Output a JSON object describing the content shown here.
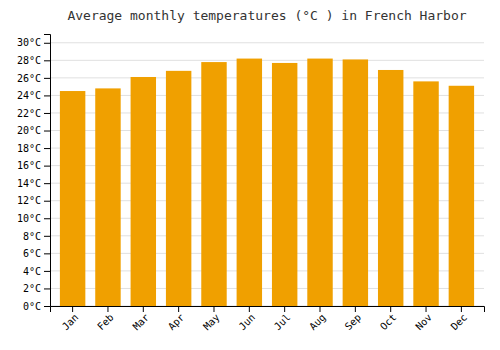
{
  "chart_data": {
    "type": "bar",
    "title": "Average monthly temperatures (°C ) in French Harbor",
    "categories": [
      "Jan",
      "Feb",
      "Mar",
      "Apr",
      "May",
      "Jun",
      "Jul",
      "Aug",
      "Sep",
      "Oct",
      "Nov",
      "Dec"
    ],
    "values": [
      24.5,
      24.8,
      26.1,
      26.8,
      27.8,
      28.2,
      27.7,
      28.2,
      28.1,
      26.9,
      25.6,
      25.1
    ],
    "color": "#F0A000",
    "ylim": [
      0,
      31
    ],
    "yticks": [
      {
        "value": 0,
        "label": "0°C"
      },
      {
        "value": 2,
        "label": "2°C"
      },
      {
        "value": 4,
        "label": "4°C"
      },
      {
        "value": 6,
        "label": "6°C"
      },
      {
        "value": 8,
        "label": "8°C"
      },
      {
        "value": 10,
        "label": "10°C"
      },
      {
        "value": 12,
        "label": "12°C"
      },
      {
        "value": 14,
        "label": "14°C"
      },
      {
        "value": 16,
        "label": "16°C"
      },
      {
        "value": 18,
        "label": "18°C"
      },
      {
        "value": 20,
        "label": "20°C"
      },
      {
        "value": 22,
        "label": "22°C"
      },
      {
        "value": 24,
        "label": "24°C"
      },
      {
        "value": 26,
        "label": "26°C"
      },
      {
        "value": 28,
        "label": "28°C"
      },
      {
        "value": 30,
        "label": "30°C"
      }
    ],
    "grid": true
  }
}
